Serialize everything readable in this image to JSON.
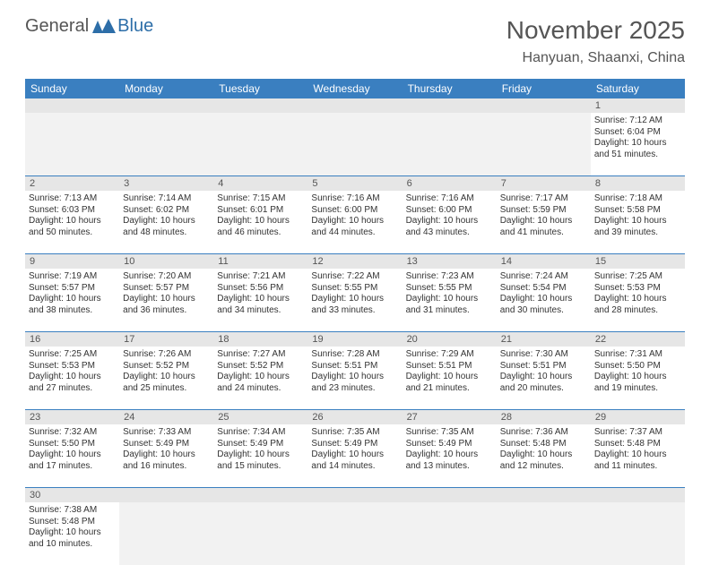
{
  "logo": {
    "left": "General",
    "right": "Blue"
  },
  "title": "November 2025",
  "location": "Hanyuan, Shaanxi, China",
  "colors": {
    "header_bar": "#3a7fc0",
    "daynum_bg": "#e6e6e6",
    "row_border": "#3a7fc0",
    "text": "#333333",
    "title_text": "#555555"
  },
  "day_names": [
    "Sunday",
    "Monday",
    "Tuesday",
    "Wednesday",
    "Thursday",
    "Friday",
    "Saturday"
  ],
  "weeks": [
    {
      "nums": [
        "",
        "",
        "",
        "",
        "",
        "",
        "1"
      ],
      "cells": [
        null,
        null,
        null,
        null,
        null,
        null,
        {
          "sunrise": "Sunrise: 7:12 AM",
          "sunset": "Sunset: 6:04 PM",
          "d1": "Daylight: 10 hours",
          "d2": "and 51 minutes."
        }
      ]
    },
    {
      "nums": [
        "2",
        "3",
        "4",
        "5",
        "6",
        "7",
        "8"
      ],
      "cells": [
        {
          "sunrise": "Sunrise: 7:13 AM",
          "sunset": "Sunset: 6:03 PM",
          "d1": "Daylight: 10 hours",
          "d2": "and 50 minutes."
        },
        {
          "sunrise": "Sunrise: 7:14 AM",
          "sunset": "Sunset: 6:02 PM",
          "d1": "Daylight: 10 hours",
          "d2": "and 48 minutes."
        },
        {
          "sunrise": "Sunrise: 7:15 AM",
          "sunset": "Sunset: 6:01 PM",
          "d1": "Daylight: 10 hours",
          "d2": "and 46 minutes."
        },
        {
          "sunrise": "Sunrise: 7:16 AM",
          "sunset": "Sunset: 6:00 PM",
          "d1": "Daylight: 10 hours",
          "d2": "and 44 minutes."
        },
        {
          "sunrise": "Sunrise: 7:16 AM",
          "sunset": "Sunset: 6:00 PM",
          "d1": "Daylight: 10 hours",
          "d2": "and 43 minutes."
        },
        {
          "sunrise": "Sunrise: 7:17 AM",
          "sunset": "Sunset: 5:59 PM",
          "d1": "Daylight: 10 hours",
          "d2": "and 41 minutes."
        },
        {
          "sunrise": "Sunrise: 7:18 AM",
          "sunset": "Sunset: 5:58 PM",
          "d1": "Daylight: 10 hours",
          "d2": "and 39 minutes."
        }
      ]
    },
    {
      "nums": [
        "9",
        "10",
        "11",
        "12",
        "13",
        "14",
        "15"
      ],
      "cells": [
        {
          "sunrise": "Sunrise: 7:19 AM",
          "sunset": "Sunset: 5:57 PM",
          "d1": "Daylight: 10 hours",
          "d2": "and 38 minutes."
        },
        {
          "sunrise": "Sunrise: 7:20 AM",
          "sunset": "Sunset: 5:57 PM",
          "d1": "Daylight: 10 hours",
          "d2": "and 36 minutes."
        },
        {
          "sunrise": "Sunrise: 7:21 AM",
          "sunset": "Sunset: 5:56 PM",
          "d1": "Daylight: 10 hours",
          "d2": "and 34 minutes."
        },
        {
          "sunrise": "Sunrise: 7:22 AM",
          "sunset": "Sunset: 5:55 PM",
          "d1": "Daylight: 10 hours",
          "d2": "and 33 minutes."
        },
        {
          "sunrise": "Sunrise: 7:23 AM",
          "sunset": "Sunset: 5:55 PM",
          "d1": "Daylight: 10 hours",
          "d2": "and 31 minutes."
        },
        {
          "sunrise": "Sunrise: 7:24 AM",
          "sunset": "Sunset: 5:54 PM",
          "d1": "Daylight: 10 hours",
          "d2": "and 30 minutes."
        },
        {
          "sunrise": "Sunrise: 7:25 AM",
          "sunset": "Sunset: 5:53 PM",
          "d1": "Daylight: 10 hours",
          "d2": "and 28 minutes."
        }
      ]
    },
    {
      "nums": [
        "16",
        "17",
        "18",
        "19",
        "20",
        "21",
        "22"
      ],
      "cells": [
        {
          "sunrise": "Sunrise: 7:25 AM",
          "sunset": "Sunset: 5:53 PM",
          "d1": "Daylight: 10 hours",
          "d2": "and 27 minutes."
        },
        {
          "sunrise": "Sunrise: 7:26 AM",
          "sunset": "Sunset: 5:52 PM",
          "d1": "Daylight: 10 hours",
          "d2": "and 25 minutes."
        },
        {
          "sunrise": "Sunrise: 7:27 AM",
          "sunset": "Sunset: 5:52 PM",
          "d1": "Daylight: 10 hours",
          "d2": "and 24 minutes."
        },
        {
          "sunrise": "Sunrise: 7:28 AM",
          "sunset": "Sunset: 5:51 PM",
          "d1": "Daylight: 10 hours",
          "d2": "and 23 minutes."
        },
        {
          "sunrise": "Sunrise: 7:29 AM",
          "sunset": "Sunset: 5:51 PM",
          "d1": "Daylight: 10 hours",
          "d2": "and 21 minutes."
        },
        {
          "sunrise": "Sunrise: 7:30 AM",
          "sunset": "Sunset: 5:51 PM",
          "d1": "Daylight: 10 hours",
          "d2": "and 20 minutes."
        },
        {
          "sunrise": "Sunrise: 7:31 AM",
          "sunset": "Sunset: 5:50 PM",
          "d1": "Daylight: 10 hours",
          "d2": "and 19 minutes."
        }
      ]
    },
    {
      "nums": [
        "23",
        "24",
        "25",
        "26",
        "27",
        "28",
        "29"
      ],
      "cells": [
        {
          "sunrise": "Sunrise: 7:32 AM",
          "sunset": "Sunset: 5:50 PM",
          "d1": "Daylight: 10 hours",
          "d2": "and 17 minutes."
        },
        {
          "sunrise": "Sunrise: 7:33 AM",
          "sunset": "Sunset: 5:49 PM",
          "d1": "Daylight: 10 hours",
          "d2": "and 16 minutes."
        },
        {
          "sunrise": "Sunrise: 7:34 AM",
          "sunset": "Sunset: 5:49 PM",
          "d1": "Daylight: 10 hours",
          "d2": "and 15 minutes."
        },
        {
          "sunrise": "Sunrise: 7:35 AM",
          "sunset": "Sunset: 5:49 PM",
          "d1": "Daylight: 10 hours",
          "d2": "and 14 minutes."
        },
        {
          "sunrise": "Sunrise: 7:35 AM",
          "sunset": "Sunset: 5:49 PM",
          "d1": "Daylight: 10 hours",
          "d2": "and 13 minutes."
        },
        {
          "sunrise": "Sunrise: 7:36 AM",
          "sunset": "Sunset: 5:48 PM",
          "d1": "Daylight: 10 hours",
          "d2": "and 12 minutes."
        },
        {
          "sunrise": "Sunrise: 7:37 AM",
          "sunset": "Sunset: 5:48 PM",
          "d1": "Daylight: 10 hours",
          "d2": "and 11 minutes."
        }
      ]
    },
    {
      "nums": [
        "30",
        "",
        "",
        "",
        "",
        "",
        ""
      ],
      "cells": [
        {
          "sunrise": "Sunrise: 7:38 AM",
          "sunset": "Sunset: 5:48 PM",
          "d1": "Daylight: 10 hours",
          "d2": "and 10 minutes."
        },
        null,
        null,
        null,
        null,
        null,
        null
      ]
    }
  ]
}
